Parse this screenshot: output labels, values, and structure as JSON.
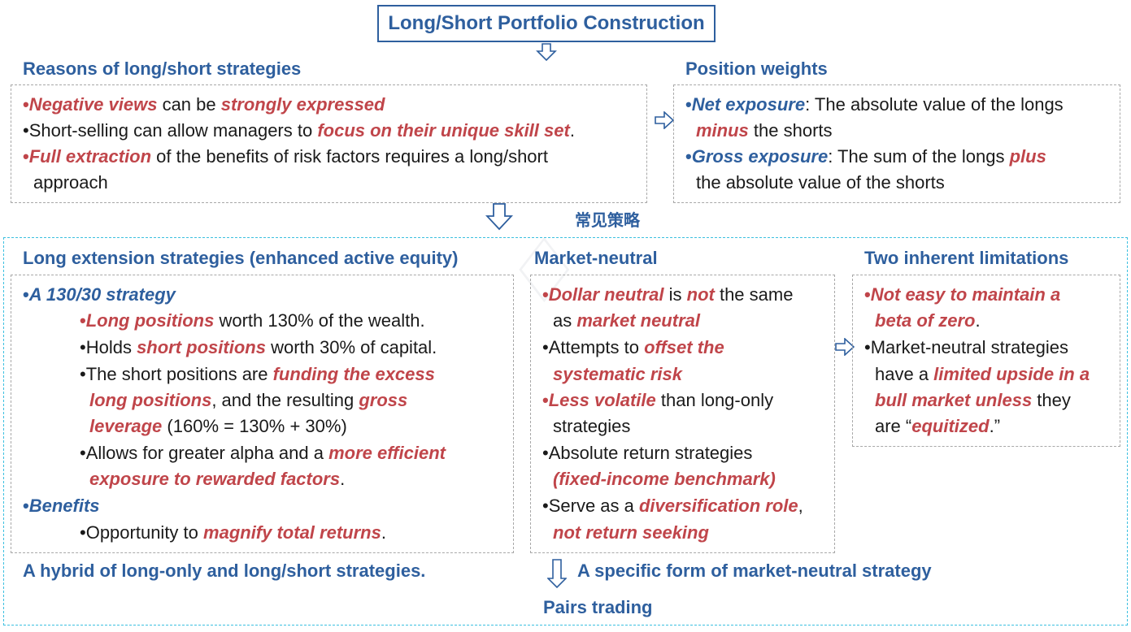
{
  "title": "Long/Short Portfolio Construction",
  "middle_label": "常见策略",
  "reasons": {
    "heading": "Reasons of long/short strategies",
    "l1a": "Negative views",
    "l1b": " can be ",
    "l1c": "strongly expressed",
    "l2a": "Short-selling can allow managers to ",
    "l2b": "focus on their unique skill set",
    "l2c": ".",
    "l3a": "Full extraction",
    "l3b": " of the benefits of risk factors requires a long/short",
    "l4": "approach"
  },
  "weights": {
    "heading": "Position weights",
    "l1a": "Net exposure",
    "l1b": ": The absolute value of the longs",
    "l2a": "minus",
    "l2b": " the shorts",
    "l3a": "Gross exposure",
    "l3b": ": The sum of the longs ",
    "l3c": "plus",
    "l4": "the absolute value of the shorts"
  },
  "long_ext": {
    "heading": "Long extension strategies (enhanced active equity)",
    "s1": "A 130/30 strategy",
    "a1": "Long positions",
    "a2": " worth 130% of the wealth.",
    "b1": "Holds ",
    "b2": "short positions",
    "b3": " worth 30% of capital.",
    "c1": "The short positions are ",
    "c2": "funding the excess",
    "c3": "long positions",
    "c4": ", and the resulting ",
    "c5": "gross",
    "c6": "leverage",
    "c7": " (160% = 130% + 30%)",
    "d1": "Allows for greater alpha and a ",
    "d2": "more efficient",
    "d3": "exposure to rewarded factors",
    "d4": ".",
    "s2": "Benefits",
    "e1": "Opportunity to ",
    "e2": "magnify total returns",
    "e3": ".",
    "footer": "A hybrid of long-only and long/short strategies."
  },
  "market_neutral": {
    "heading": "Market-neutral",
    "a1": "Dollar neutral",
    "a2": " is ",
    "a3": "not",
    "a4": " the same",
    "a5": "as ",
    "a6": "market neutral",
    "b1": "Attempts to ",
    "b2": "offset the",
    "b3": "systematic risk",
    "c1": "Less volatile",
    "c2": " than long-only",
    "c3": "strategies",
    "d1": "Absolute return strategies",
    "d2": "(fixed-income benchmark)",
    "e1": "Serve as a ",
    "e2": "diversification role",
    "e3": ",",
    "e4": "not return seeking",
    "footer": "A specific form of market-neutral strategy",
    "pairs": "Pairs trading"
  },
  "limitations": {
    "heading": "Two inherent limitations",
    "a1": "Not easy to maintain a",
    "a2": "beta of zero",
    "a3": ".",
    "b1": "Market-neutral strategies",
    "b2": "have a ",
    "b3": "limited upside in a",
    "b4": "bull market unless",
    "b5": " they",
    "b6": "are “",
    "b7": "equitized",
    "b8": ".”"
  },
  "bullet": "•",
  "colors": {
    "heading": "#2e5f9e",
    "emphasis": "#c0454a",
    "box_border": "#2e5f9e",
    "outer_border": "#3cc0e0"
  }
}
